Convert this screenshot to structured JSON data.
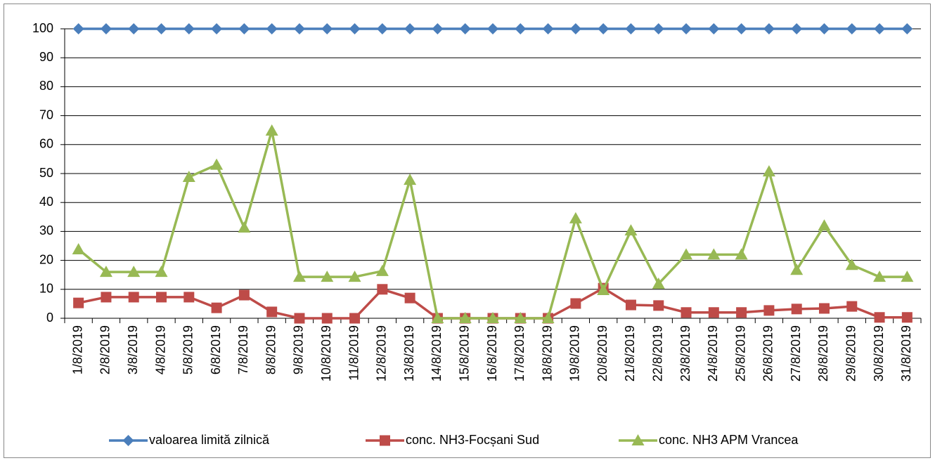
{
  "chart_data": {
    "type": "line",
    "categories": [
      "1/8/2019",
      "2/8/2019",
      "3/8/2019",
      "4/8/2019",
      "5/8/2019",
      "6/8/2019",
      "7/8/2019",
      "8/8/2019",
      "9/8/2019",
      "10/8/2019",
      "11/8/2019",
      "12/8/2019",
      "13/8/2019",
      "14/8/2019",
      "15/8/2019",
      "16/8/2019",
      "17/8/2019",
      "18/8/2019",
      "19/8/2019",
      "20/8/2019",
      "21/8/2019",
      "22/8/2019",
      "23/8/2019",
      "24/8/2019",
      "25/8/2019",
      "26/8/2019",
      "27/8/2019",
      "28/8/2019",
      "29/8/2019",
      "30/8/2019",
      "31/8/2019"
    ],
    "series": [
      {
        "name": "valoarea limită zilnică",
        "color": "#4a7ebb",
        "values": [
          100,
          100,
          100,
          100,
          100,
          100,
          100,
          100,
          100,
          100,
          100,
          100,
          100,
          100,
          100,
          100,
          100,
          100,
          100,
          100,
          100,
          100,
          100,
          100,
          100,
          100,
          100,
          100,
          100,
          100,
          100
        ]
      },
      {
        "name": "conc. NH3-Focșani Sud",
        "color": "#be4b48",
        "values": [
          5.3,
          7.3,
          7.3,
          7.3,
          7.3,
          3.6,
          8,
          2.2,
          0,
          0,
          0,
          10,
          7,
          0,
          0,
          0,
          0,
          0,
          5.1,
          10.4,
          4.6,
          4.4,
          2,
          2,
          2,
          2.7,
          3.2,
          3.4,
          4.1,
          0.3,
          0.3
        ]
      },
      {
        "name": "conc. NH3 APM Vrancea",
        "color": "#98b954",
        "values": [
          23.8,
          16,
          16,
          16,
          48.8,
          53,
          31.3,
          64.8,
          14.3,
          14.3,
          14.3,
          16.3,
          47.8,
          0,
          0,
          0,
          0,
          0,
          34.5,
          9.7,
          30.3,
          11.9,
          22,
          22,
          22,
          50.7,
          16.7,
          32,
          18.4,
          14.3,
          14.3
        ]
      }
    ],
    "ylim": [
      0,
      100
    ],
    "yticks": [
      0,
      10,
      20,
      30,
      40,
      50,
      60,
      70,
      80,
      90,
      100
    ],
    "grid": true,
    "legend": "bottom"
  }
}
